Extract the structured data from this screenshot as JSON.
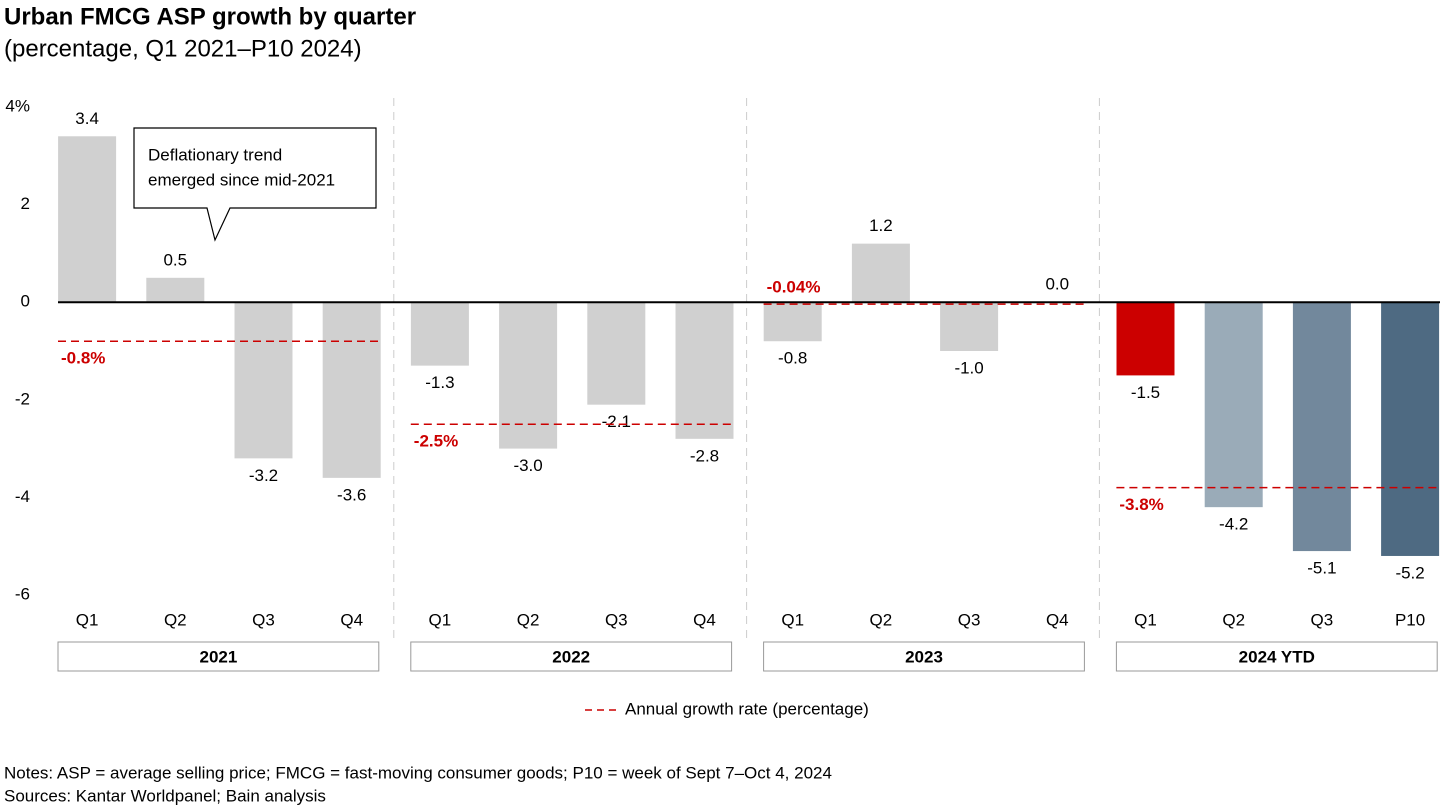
{
  "chart_data": {
    "type": "bar",
    "title": "Urban FMCG ASP growth by quarter",
    "subtitle": "(percentage, Q1 2021–P10 2024)",
    "categories": [
      "Q1",
      "Q2",
      "Q3",
      "Q4",
      "Q1",
      "Q2",
      "Q3",
      "Q4",
      "Q1",
      "Q2",
      "Q3",
      "Q4",
      "Q1",
      "Q2",
      "Q3",
      "P10"
    ],
    "values": [
      3.4,
      0.5,
      -3.2,
      -3.6,
      -1.3,
      -3.0,
      -2.1,
      -2.8,
      -0.8,
      1.2,
      -1.0,
      0.0,
      -1.5,
      -4.2,
      -5.1,
      -5.2
    ],
    "value_labels": [
      "3.4",
      "0.5",
      "-3.2",
      "-3.6",
      "-1.3",
      "-3.0",
      "-2.1",
      "-2.8",
      "-0.8",
      "1.2",
      "-1.0",
      "0.0",
      "-1.5",
      "-4.2",
      "-5.1",
      "-5.2"
    ],
    "colors": [
      "#d0d0d0",
      "#d0d0d0",
      "#d0d0d0",
      "#d0d0d0",
      "#d0d0d0",
      "#d0d0d0",
      "#d0d0d0",
      "#d0d0d0",
      "#d0d0d0",
      "#d0d0d0",
      "#d0d0d0",
      "#d0d0d0",
      "#cc0000",
      "#9aabb8",
      "#72889c",
      "#4e6a82"
    ],
    "groups": [
      {
        "name": "2021",
        "annual_growth": -0.8,
        "annual_growth_label": "-0.8%"
      },
      {
        "name": "2022",
        "annual_growth": -2.5,
        "annual_growth_label": "-2.5%"
      },
      {
        "name": "2023",
        "annual_growth": -0.04,
        "annual_growth_label": "-0.04%"
      },
      {
        "name": "2024 YTD",
        "annual_growth": -3.8,
        "annual_growth_label": "-3.8%"
      }
    ],
    "annual_color": "#cc0000",
    "legend": "Annual growth rate (percentage)",
    "annotation": [
      "Deflationary trend",
      "emerged since mid-2021"
    ],
    "ylim": [
      -6,
      4
    ],
    "yticks": [
      {
        "value": 4,
        "label": "4%"
      },
      2,
      0,
      -2,
      -4,
      -6
    ],
    "notes": [
      "Notes: ASP = average selling price; FMCG = fast-moving consumer goods; P10 = week of Sept 7–Oct 4, 2024",
      "Sources: Kantar Worldpanel; Bain analysis"
    ]
  }
}
